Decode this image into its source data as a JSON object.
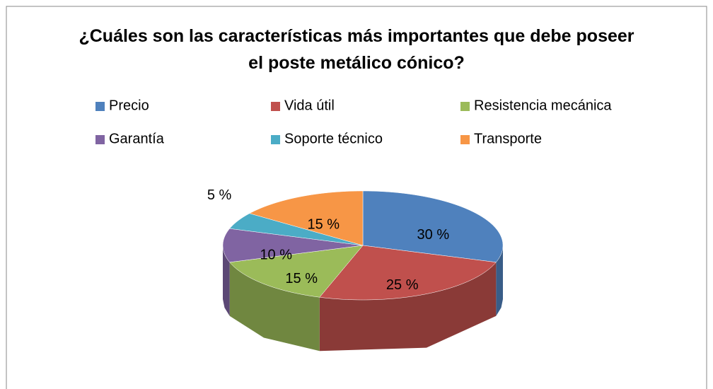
{
  "chart_data": {
    "type": "pie",
    "title": "¿Cuáles son las características más importantes que debe poseer el poste metálico cónico?",
    "categories": [
      "Precio",
      "Vida útil",
      "Resistencia mecánica",
      "Garantía",
      "Soporte técnico",
      "Transporte"
    ],
    "values": [
      30,
      25,
      15,
      10,
      5,
      15
    ],
    "value_labels": [
      "30 %",
      "25 %",
      "15 %",
      "10 %",
      "5 %",
      "15 %"
    ],
    "colors": [
      "#4f81bd",
      "#c0504d",
      "#9bbb59",
      "#8064a2",
      "#4bacc6",
      "#f79646"
    ],
    "legend": "top"
  }
}
